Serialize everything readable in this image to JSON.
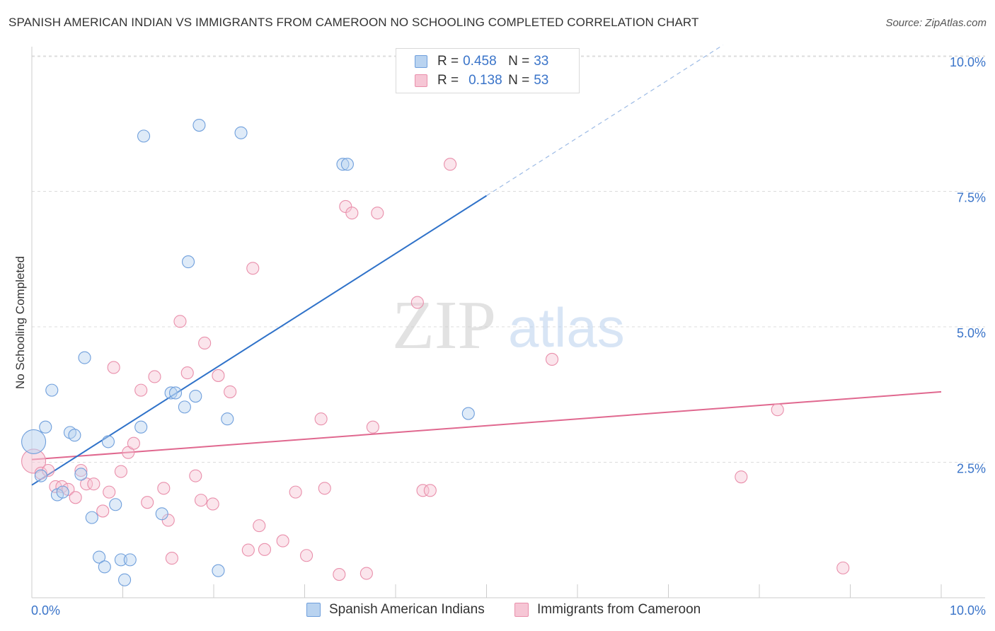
{
  "title": "SPANISH AMERICAN INDIAN VS IMMIGRANTS FROM CAMEROON NO SCHOOLING COMPLETED CORRELATION CHART",
  "source": "Source: ZipAtlas.com",
  "watermark": {
    "zip": "ZIP",
    "atlas": "atlas"
  },
  "legend_top": {
    "r_label": "R =",
    "n_label": "N =",
    "rows": [
      {
        "r": "0.458",
        "n": "33"
      },
      {
        "r": "0.138",
        "n": "53"
      }
    ]
  },
  "colors": {
    "blue_fill": "#b9d3f0",
    "blue_stroke": "#6f9fdc",
    "blue_line": "#2f72c9",
    "pink_fill": "#f6c6d5",
    "pink_stroke": "#e98fab",
    "pink_line": "#e0688f",
    "axis_text": "#3a74c9",
    "grid": "#dcdcdc"
  },
  "chart_data": {
    "type": "scatter",
    "title": "SPANISH AMERICAN INDIAN VS IMMIGRANTS FROM CAMEROON NO SCHOOLING COMPLETED CORRELATION CHART",
    "xlabel": "",
    "ylabel": "No Schooling Completed",
    "xlim": [
      0,
      10
    ],
    "ylim": [
      0,
      10
    ],
    "x_tick_labels": [
      "0.0%",
      "10.0%"
    ],
    "y_ticks": [
      2.5,
      5.0,
      7.5,
      10.0
    ],
    "y_tick_labels": [
      "2.5%",
      "5.0%",
      "7.5%",
      "10.0%"
    ],
    "grid": true,
    "series": [
      {
        "name": "Spanish American Indians",
        "r": 0.458,
        "n": 33,
        "trend": {
          "x": [
            0,
            5.0
          ],
          "y": [
            2.08,
            7.42
          ],
          "dashed_to": {
            "x": 7.6,
            "y": 10.2
          }
        },
        "points": [
          {
            "x": 0.02,
            "y": 2.88,
            "big": true
          },
          {
            "x": 0.1,
            "y": 2.25
          },
          {
            "x": 0.15,
            "y": 3.15
          },
          {
            "x": 0.22,
            "y": 3.83
          },
          {
            "x": 0.28,
            "y": 1.9
          },
          {
            "x": 0.34,
            "y": 1.95
          },
          {
            "x": 0.42,
            "y": 3.05
          },
          {
            "x": 0.47,
            "y": 3.0
          },
          {
            "x": 0.54,
            "y": 2.28
          },
          {
            "x": 0.58,
            "y": 4.43
          },
          {
            "x": 0.66,
            "y": 1.48
          },
          {
            "x": 0.74,
            "y": 0.75
          },
          {
            "x": 0.8,
            "y": 0.57
          },
          {
            "x": 0.84,
            "y": 2.88
          },
          {
            "x": 0.92,
            "y": 1.72
          },
          {
            "x": 0.98,
            "y": 0.7
          },
          {
            "x": 1.02,
            "y": 0.33
          },
          {
            "x": 1.08,
            "y": 0.7
          },
          {
            "x": 1.2,
            "y": 3.15
          },
          {
            "x": 1.23,
            "y": 8.52
          },
          {
            "x": 1.43,
            "y": 1.55
          },
          {
            "x": 1.53,
            "y": 3.78
          },
          {
            "x": 1.58,
            "y": 3.78
          },
          {
            "x": 1.68,
            "y": 3.52
          },
          {
            "x": 1.72,
            "y": 6.2
          },
          {
            "x": 1.8,
            "y": 3.72
          },
          {
            "x": 1.84,
            "y": 8.72
          },
          {
            "x": 2.05,
            "y": 0.5
          },
          {
            "x": 2.15,
            "y": 3.3
          },
          {
            "x": 2.3,
            "y": 8.58
          },
          {
            "x": 3.42,
            "y": 8.0
          },
          {
            "x": 3.47,
            "y": 8.0
          },
          {
            "x": 4.8,
            "y": 3.4
          }
        ]
      },
      {
        "name": "Immigrants from Cameroon",
        "r": 0.138,
        "n": 53,
        "trend": {
          "x": [
            0,
            10.0
          ],
          "y": [
            2.55,
            3.8
          ]
        },
        "points": [
          {
            "x": 0.02,
            "y": 2.52,
            "big": true
          },
          {
            "x": 0.1,
            "y": 2.3
          },
          {
            "x": 0.18,
            "y": 2.35
          },
          {
            "x": 0.26,
            "y": 2.05
          },
          {
            "x": 0.33,
            "y": 2.05
          },
          {
            "x": 0.4,
            "y": 2.0
          },
          {
            "x": 0.48,
            "y": 1.85
          },
          {
            "x": 0.54,
            "y": 2.35
          },
          {
            "x": 0.6,
            "y": 2.1
          },
          {
            "x": 0.68,
            "y": 2.1
          },
          {
            "x": 0.78,
            "y": 1.6
          },
          {
            "x": 0.85,
            "y": 1.95
          },
          {
            "x": 0.9,
            "y": 4.25
          },
          {
            "x": 0.98,
            "y": 2.33
          },
          {
            "x": 1.06,
            "y": 2.68
          },
          {
            "x": 1.12,
            "y": 2.85
          },
          {
            "x": 1.2,
            "y": 3.83
          },
          {
            "x": 1.27,
            "y": 1.76
          },
          {
            "x": 1.35,
            "y": 4.08
          },
          {
            "x": 1.45,
            "y": 2.02
          },
          {
            "x": 1.5,
            "y": 1.43
          },
          {
            "x": 1.54,
            "y": 0.73
          },
          {
            "x": 1.63,
            "y": 5.1
          },
          {
            "x": 1.71,
            "y": 4.15
          },
          {
            "x": 1.8,
            "y": 2.25
          },
          {
            "x": 1.86,
            "y": 1.8
          },
          {
            "x": 1.9,
            "y": 4.7
          },
          {
            "x": 1.99,
            "y": 1.73
          },
          {
            "x": 2.05,
            "y": 4.1
          },
          {
            "x": 2.18,
            "y": 3.8
          },
          {
            "x": 2.38,
            "y": 0.88
          },
          {
            "x": 2.43,
            "y": 6.08
          },
          {
            "x": 2.5,
            "y": 1.33
          },
          {
            "x": 2.56,
            "y": 0.89
          },
          {
            "x": 2.76,
            "y": 1.05
          },
          {
            "x": 2.9,
            "y": 1.95
          },
          {
            "x": 3.02,
            "y": 0.78
          },
          {
            "x": 3.18,
            "y": 3.3
          },
          {
            "x": 3.22,
            "y": 2.02
          },
          {
            "x": 3.38,
            "y": 0.43
          },
          {
            "x": 3.45,
            "y": 7.22
          },
          {
            "x": 3.52,
            "y": 7.1
          },
          {
            "x": 3.68,
            "y": 0.45
          },
          {
            "x": 3.75,
            "y": 3.15
          },
          {
            "x": 3.8,
            "y": 7.1
          },
          {
            "x": 4.24,
            "y": 5.45
          },
          {
            "x": 4.3,
            "y": 1.98
          },
          {
            "x": 4.38,
            "y": 1.98
          },
          {
            "x": 4.6,
            "y": 8.0
          },
          {
            "x": 5.72,
            "y": 4.4
          },
          {
            "x": 7.8,
            "y": 2.23
          },
          {
            "x": 8.2,
            "y": 3.47
          },
          {
            "x": 8.92,
            "y": 0.55
          }
        ]
      }
    ]
  }
}
